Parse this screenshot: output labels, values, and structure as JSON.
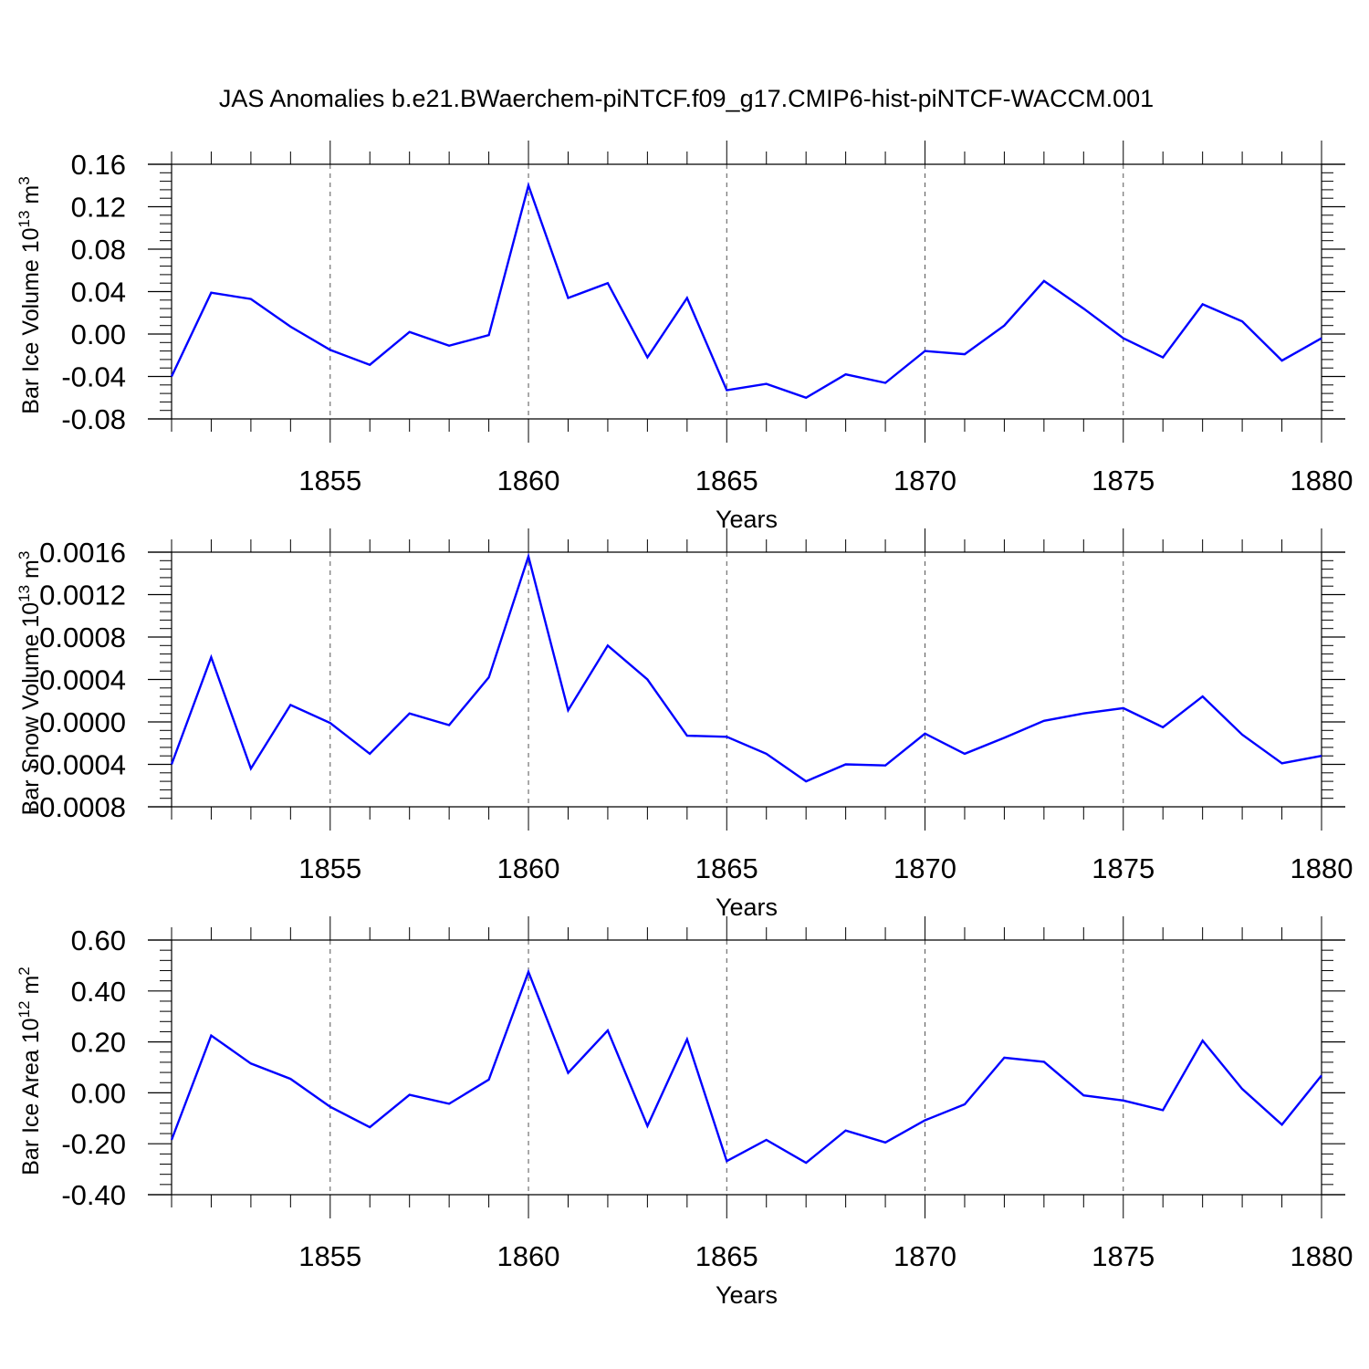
{
  "title": "JAS Anomalies b.e21.BWaerchem-piNTCF.f09_g17.CMIP6-hist-piNTCF-WACCM.001",
  "colors": {
    "line": "#0000ff",
    "axis": "#000000",
    "grid": "#555555"
  },
  "chart_data": [
    {
      "type": "line",
      "ylabel_main": "Bar Ice Volume 10",
      "ylabel_exp": "13",
      "ylabel_unit": " m",
      "ylabel_unit_exp": "3",
      "xlabel": "Years",
      "xlim": [
        1851,
        1880
      ],
      "ylim": [
        -0.08,
        0.16
      ],
      "yticks": [
        -0.08,
        -0.04,
        0.0,
        0.04,
        0.08,
        0.12,
        0.16
      ],
      "ytick_labels": [
        "-0.08",
        "-0.04",
        "0.00",
        "0.04",
        "0.08",
        "0.12",
        "0.16"
      ],
      "xticks": [
        1855,
        1860,
        1865,
        1870,
        1875,
        1880
      ],
      "xtick_labels": [
        "1855",
        "1860",
        "1865",
        "1870",
        "1875",
        "1880"
      ],
      "x": [
        1851,
        1852,
        1853,
        1854,
        1855,
        1856,
        1857,
        1858,
        1859,
        1860,
        1861,
        1862,
        1863,
        1864,
        1865,
        1866,
        1867,
        1868,
        1869,
        1870,
        1871,
        1872,
        1873,
        1874,
        1875,
        1876,
        1877,
        1878,
        1879,
        1880
      ],
      "values": [
        -0.04,
        0.039,
        0.033,
        0.007,
        -0.015,
        -0.029,
        0.002,
        -0.011,
        -0.001,
        0.14,
        0.034,
        0.048,
        -0.022,
        0.034,
        -0.053,
        -0.047,
        -0.06,
        -0.038,
        -0.046,
        -0.016,
        -0.019,
        0.008,
        0.05,
        0.024,
        -0.004,
        -0.022,
        0.028,
        0.012,
        -0.025,
        -0.004
      ]
    },
    {
      "type": "line",
      "ylabel_main": "Bar Snow Volume 10",
      "ylabel_exp": "13",
      "ylabel_unit": " m",
      "ylabel_unit_exp": "3",
      "xlabel": "Years",
      "xlim": [
        1851,
        1880
      ],
      "ylim": [
        -0.0008,
        0.0016
      ],
      "yticks": [
        -0.0008,
        -0.0004,
        0.0,
        0.0004,
        0.0008,
        0.0012,
        0.0016
      ],
      "ytick_labels": [
        "-0.0008",
        "-0.0004",
        "0.0000",
        "0.0004",
        "0.0008",
        "0.0012",
        "0.0016"
      ],
      "xticks": [
        1855,
        1860,
        1865,
        1870,
        1875,
        1880
      ],
      "xtick_labels": [
        "1855",
        "1860",
        "1865",
        "1870",
        "1875",
        "1880"
      ],
      "x": [
        1851,
        1852,
        1853,
        1854,
        1855,
        1856,
        1857,
        1858,
        1859,
        1860,
        1861,
        1862,
        1863,
        1864,
        1865,
        1866,
        1867,
        1868,
        1869,
        1870,
        1871,
        1872,
        1873,
        1874,
        1875,
        1876,
        1877,
        1878,
        1879,
        1880
      ],
      "values": [
        -0.0004,
        0.00061,
        -0.00044,
        0.00016,
        -1e-05,
        -0.0003,
        8e-05,
        -3e-05,
        0.00042,
        0.00156,
        0.00011,
        0.00072,
        0.0004,
        -0.00013,
        -0.00014,
        -0.0003,
        -0.00056,
        -0.0004,
        -0.00041,
        -0.00011,
        -0.0003,
        -0.00015,
        1e-05,
        8e-05,
        0.00013,
        -5e-05,
        0.00024,
        -0.00012,
        -0.00039,
        -0.00032
      ]
    },
    {
      "type": "line",
      "ylabel_main": "Bar Ice Area 10",
      "ylabel_exp": "12",
      "ylabel_unit": " m",
      "ylabel_unit_exp": "2",
      "xlabel": "Years",
      "xlim": [
        1851,
        1880
      ],
      "ylim": [
        -0.4,
        0.6
      ],
      "yticks": [
        -0.4,
        -0.2,
        0.0,
        0.2,
        0.4,
        0.6
      ],
      "ytick_labels": [
        "-0.40",
        "-0.20",
        "0.00",
        "0.20",
        "0.40",
        "0.60"
      ],
      "xticks": [
        1855,
        1860,
        1865,
        1870,
        1875,
        1880
      ],
      "xtick_labels": [
        "1855",
        "1860",
        "1865",
        "1870",
        "1875",
        "1880"
      ],
      "x": [
        1851,
        1852,
        1853,
        1854,
        1855,
        1856,
        1857,
        1858,
        1859,
        1860,
        1861,
        1862,
        1863,
        1864,
        1865,
        1866,
        1867,
        1868,
        1869,
        1870,
        1871,
        1872,
        1873,
        1874,
        1875,
        1876,
        1877,
        1878,
        1879,
        1880
      ],
      "values": [
        -0.185,
        0.225,
        0.115,
        0.055,
        -0.055,
        -0.135,
        -0.008,
        -0.043,
        0.052,
        0.475,
        0.078,
        0.245,
        -0.13,
        0.21,
        -0.268,
        -0.185,
        -0.275,
        -0.148,
        -0.195,
        -0.108,
        -0.045,
        0.138,
        0.122,
        -0.01,
        -0.03,
        -0.068,
        0.205,
        0.015,
        -0.125,
        0.068
      ]
    }
  ]
}
